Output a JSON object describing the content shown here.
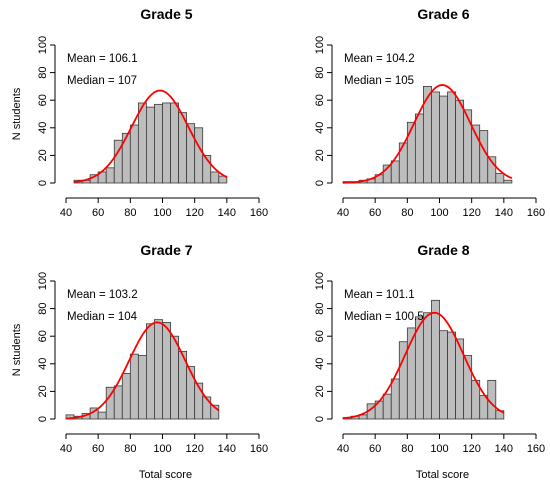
{
  "chart_data": [
    {
      "type": "histogram",
      "title": "Grade 5",
      "ylabel": "N students",
      "xlabel": "",
      "xlim": [
        40,
        160
      ],
      "ylim": [
        0,
        100
      ],
      "x_ticks": [
        40,
        60,
        80,
        100,
        120,
        140,
        160
      ],
      "y_ticks": [
        0,
        20,
        40,
        60,
        80,
        100
      ],
      "bin_width": 5,
      "bin_start": 45,
      "values": [
        2,
        2,
        6,
        8,
        11,
        31,
        36,
        42,
        58,
        55,
        57,
        58,
        58,
        51,
        43,
        40,
        20,
        8,
        5
      ],
      "annotations": [
        "Mean = 106.1",
        "Median = 107"
      ],
      "fit_curve": {
        "color": "#ff0000",
        "peak": 67
      }
    },
    {
      "type": "histogram",
      "title": "Grade 6",
      "ylabel": "",
      "xlabel": "",
      "xlim": [
        40,
        160
      ],
      "ylim": [
        0,
        100
      ],
      "x_ticks": [
        40,
        60,
        80,
        100,
        120,
        140,
        160
      ],
      "y_ticks": [
        0,
        20,
        40,
        60,
        80,
        100
      ],
      "bin_width": 5,
      "bin_start": 40,
      "values": [
        1,
        1,
        2,
        3,
        6,
        13,
        16,
        29,
        44,
        50,
        70,
        66,
        63,
        66,
        60,
        53,
        42,
        38,
        19,
        7,
        2
      ],
      "annotations": [
        "Mean = 104.2",
        "Median = 105"
      ],
      "fit_curve": {
        "color": "#ff0000",
        "peak": 71
      }
    },
    {
      "type": "histogram",
      "title": "Grade 7",
      "ylabel": "N students",
      "xlabel": "Total score",
      "xlim": [
        40,
        160
      ],
      "ylim": [
        0,
        100
      ],
      "x_ticks": [
        40,
        60,
        80,
        100,
        120,
        140,
        160
      ],
      "y_ticks": [
        0,
        20,
        40,
        60,
        80,
        100
      ],
      "bin_width": 5,
      "bin_start": 40,
      "values": [
        3,
        2,
        4,
        8,
        5,
        23,
        24,
        33,
        47,
        46,
        69,
        72,
        70,
        60,
        49,
        38,
        26,
        16,
        10
      ],
      "annotations": [
        "Mean = 103.2",
        "Median = 104"
      ],
      "fit_curve": {
        "color": "#ff0000",
        "peak": 70
      }
    },
    {
      "type": "histogram",
      "title": "Grade 8",
      "ylabel": "",
      "xlabel": "Total score",
      "xlim": [
        40,
        160
      ],
      "ylim": [
        0,
        100
      ],
      "x_ticks": [
        40,
        60,
        80,
        100,
        120,
        140,
        160
      ],
      "y_ticks": [
        0,
        20,
        40,
        60,
        80,
        100
      ],
      "bin_width": 5,
      "bin_start": 40,
      "values": [
        1,
        2,
        3,
        11,
        13,
        18,
        29,
        56,
        66,
        74,
        77,
        86,
        64,
        63,
        58,
        46,
        28,
        17,
        28,
        6
      ],
      "annotations": [
        "Mean = 101.1",
        "Median = 100.5"
      ],
      "fit_curve": {
        "color": "#ff0000",
        "peak": 77
      }
    }
  ]
}
